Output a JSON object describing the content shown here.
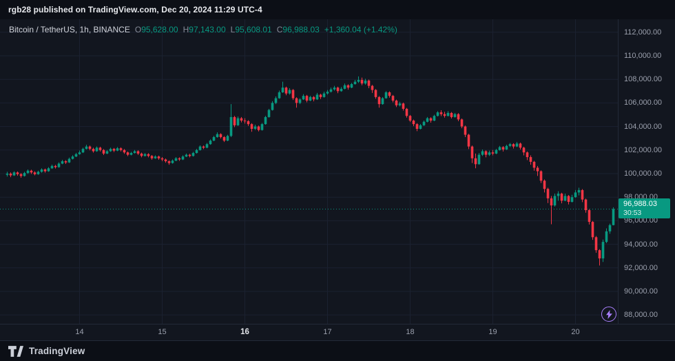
{
  "header": {
    "published_line": "rgb28 published on TradingView.com, Dec 20, 2024 11:29 UTC-4"
  },
  "legend": {
    "symbol": "Bitcoin / TetherUS, 1h, BINANCE",
    "o_label": "O",
    "o_value": "95,628.00",
    "h_label": "H",
    "h_value": "97,143.00",
    "l_label": "L",
    "l_value": "95,608.01",
    "c_label": "C",
    "c_value": "96,988.03",
    "change": "+1,360.04 (+1.42%)"
  },
  "price_scale": {
    "labels": [
      "112,000.00",
      "110,000.00",
      "108,000.00",
      "106,000.00",
      "104,000.00",
      "102,000.00",
      "100,000.00",
      "98,000.00",
      "96,000.00",
      "94,000.00",
      "92,000.00",
      "90,000.00",
      "88,000.00"
    ]
  },
  "price_badge": {
    "price": "96,988.03",
    "countdown": "30:53"
  },
  "time_axis": {
    "labels": [
      {
        "text": "14",
        "candle_index": 21,
        "emphasis": false
      },
      {
        "text": "15",
        "candle_index": 45,
        "emphasis": false
      },
      {
        "text": "16",
        "candle_index": 69,
        "emphasis": true
      },
      {
        "text": "17",
        "candle_index": 93,
        "emphasis": false
      },
      {
        "text": "18",
        "candle_index": 117,
        "emphasis": false
      },
      {
        "text": "19",
        "candle_index": 141,
        "emphasis": false
      },
      {
        "text": "20",
        "candle_index": 165,
        "emphasis": false
      }
    ]
  },
  "footer": {
    "brand": "TradingView"
  },
  "colors": {
    "up": "#089981",
    "down": "#f23645",
    "accent_green": "#089981",
    "badge_bg": "#089981",
    "bolt_purple": "#a87ffb"
  },
  "chart_data": {
    "type": "candlestick",
    "symbol": "Bitcoin / TetherUS",
    "interval": "1h",
    "exchange": "BINANCE",
    "title": "BTC/USDT 1h candlestick chart, Dec 13-20 2024",
    "ohlc_current": {
      "open": 95628.0,
      "high": 97143.0,
      "low": 95608.01,
      "close": 96988.03,
      "change": 1360.04,
      "change_pct": 1.42
    },
    "price_line": 96988.03,
    "countdown": "30:53",
    "y_ticks": [
      112000,
      110000,
      108000,
      106000,
      104000,
      102000,
      100000,
      98000,
      96000,
      94000,
      92000,
      90000,
      88000
    ],
    "y_domain": [
      87250,
      113100
    ],
    "x_unit": "hours, day tick labels = Dec 2024",
    "grid": true,
    "candles": [
      [
        99900,
        100150,
        99750,
        100000
      ],
      [
        100000,
        100100,
        99700,
        99850
      ],
      [
        99850,
        100200,
        99800,
        100100
      ],
      [
        100100,
        100180,
        99820,
        99950
      ],
      [
        99950,
        100050,
        99650,
        99800
      ],
      [
        99800,
        100150,
        99750,
        100050
      ],
      [
        100050,
        100350,
        99980,
        100250
      ],
      [
        100250,
        100330,
        99980,
        100100
      ],
      [
        100100,
        100200,
        99850,
        99950
      ],
      [
        99950,
        100250,
        99900,
        100150
      ],
      [
        100150,
        100450,
        100080,
        100350
      ],
      [
        100350,
        100430,
        100080,
        100200
      ],
      [
        100200,
        100550,
        100150,
        100450
      ],
      [
        100450,
        100760,
        100400,
        100650
      ],
      [
        100650,
        100740,
        100430,
        100550
      ],
      [
        100550,
        100960,
        100500,
        100850
      ],
      [
        100850,
        101160,
        100800,
        101050
      ],
      [
        101050,
        101140,
        100820,
        100950
      ],
      [
        100950,
        101360,
        100900,
        101250
      ],
      [
        101250,
        101560,
        101200,
        101450
      ],
      [
        101450,
        101760,
        101400,
        101650
      ],
      [
        101650,
        101960,
        101600,
        101800
      ],
      [
        101800,
        102200,
        101750,
        102100
      ],
      [
        102100,
        102450,
        102050,
        102300
      ],
      [
        102300,
        102380,
        101980,
        102100
      ],
      [
        102100,
        102200,
        101780,
        101900
      ],
      [
        101900,
        102300,
        101850,
        102200
      ],
      [
        102200,
        102280,
        101880,
        102000
      ],
      [
        102000,
        102080,
        101580,
        101700
      ],
      [
        101700,
        102000,
        101650,
        101900
      ],
      [
        101900,
        102200,
        101850,
        102100
      ],
      [
        102100,
        102180,
        101830,
        101950
      ],
      [
        101950,
        102250,
        101900,
        102150
      ],
      [
        102150,
        102230,
        101880,
        102000
      ],
      [
        102000,
        102080,
        101680,
        101800
      ],
      [
        101800,
        101880,
        101480,
        101600
      ],
      [
        101600,
        101850,
        101550,
        101750
      ],
      [
        101750,
        102000,
        101700,
        101900
      ],
      [
        101900,
        101980,
        101580,
        101700
      ],
      [
        101700,
        101780,
        101380,
        101500
      ],
      [
        101500,
        101750,
        101450,
        101650
      ],
      [
        101650,
        101730,
        101380,
        101500
      ],
      [
        101500,
        101580,
        101180,
        101300
      ],
      [
        101300,
        101550,
        101250,
        101450
      ],
      [
        101450,
        101530,
        101180,
        101300
      ],
      [
        101300,
        101400,
        101050,
        101200
      ],
      [
        101200,
        101280,
        100930,
        101050
      ],
      [
        101050,
        101130,
        100750,
        100900
      ],
      [
        100900,
        101200,
        100850,
        101100
      ],
      [
        101100,
        101400,
        101050,
        101300
      ],
      [
        101300,
        101380,
        101080,
        101200
      ],
      [
        101200,
        101550,
        101150,
        101450
      ],
      [
        101450,
        101700,
        101400,
        101600
      ],
      [
        101600,
        101680,
        101380,
        101500
      ],
      [
        101500,
        101850,
        101450,
        101750
      ],
      [
        101750,
        102100,
        101700,
        102000
      ],
      [
        102000,
        102400,
        101950,
        102300
      ],
      [
        102300,
        102380,
        102080,
        102200
      ],
      [
        102200,
        102600,
        102150,
        102500
      ],
      [
        102500,
        102900,
        102450,
        102800
      ],
      [
        102800,
        103200,
        102750,
        103100
      ],
      [
        103100,
        103500,
        103050,
        103350
      ],
      [
        103350,
        103430,
        102980,
        103100
      ],
      [
        103100,
        103180,
        102680,
        102800
      ],
      [
        102800,
        103300,
        102750,
        103200
      ],
      [
        103200,
        105900,
        103100,
        104800
      ],
      [
        104800,
        104900,
        103950,
        104100
      ],
      [
        104100,
        104850,
        104050,
        104700
      ],
      [
        104700,
        104800,
        104350,
        104500
      ],
      [
        104500,
        104700,
        104250,
        104450
      ],
      [
        104450,
        104530,
        104050,
        104200
      ],
      [
        104200,
        104280,
        103550,
        103800
      ],
      [
        103800,
        104150,
        103700,
        104000
      ],
      [
        104000,
        104080,
        103580,
        103700
      ],
      [
        103700,
        104300,
        103650,
        104200
      ],
      [
        104200,
        104900,
        104150,
        104800
      ],
      [
        104800,
        105500,
        104750,
        105400
      ],
      [
        105400,
        106150,
        105350,
        106000
      ],
      [
        106000,
        106550,
        105900,
        106400
      ],
      [
        106400,
        107050,
        106350,
        106900
      ],
      [
        106900,
        107800,
        106850,
        107300
      ],
      [
        107300,
        107380,
        106650,
        106800
      ],
      [
        106800,
        107250,
        106700,
        107100
      ],
      [
        107100,
        107180,
        106250,
        106400
      ],
      [
        106400,
        106480,
        105600,
        106000
      ],
      [
        106000,
        106400,
        105900,
        106300
      ],
      [
        106300,
        106750,
        106250,
        106600
      ],
      [
        106600,
        106680,
        106050,
        106200
      ],
      [
        106200,
        106600,
        106150,
        106500
      ],
      [
        106500,
        106580,
        106130,
        106300
      ],
      [
        106300,
        106850,
        106250,
        106700
      ],
      [
        106700,
        106780,
        106330,
        106500
      ],
      [
        106500,
        106950,
        106450,
        106800
      ],
      [
        106800,
        107100,
        106700,
        106950
      ],
      [
        106950,
        107300,
        106880,
        107150
      ],
      [
        107150,
        107450,
        107050,
        107300
      ],
      [
        107300,
        107380,
        106830,
        107000
      ],
      [
        107000,
        107350,
        106950,
        107200
      ],
      [
        107200,
        107650,
        107150,
        107500
      ],
      [
        107500,
        107580,
        107130,
        107300
      ],
      [
        107300,
        107700,
        107250,
        107600
      ],
      [
        107600,
        107950,
        107550,
        107800
      ],
      [
        107800,
        108250,
        107700,
        107950
      ],
      [
        107950,
        108150,
        107500,
        107650
      ],
      [
        107650,
        108050,
        107550,
        107900
      ],
      [
        107900,
        107980,
        107250,
        107450
      ],
      [
        107450,
        107530,
        106850,
        107100
      ],
      [
        107100,
        107180,
        106350,
        106500
      ],
      [
        106500,
        106580,
        105600,
        105900
      ],
      [
        105900,
        106500,
        105850,
        106400
      ],
      [
        106400,
        107000,
        106350,
        106900
      ],
      [
        106900,
        106980,
        106450,
        106600
      ],
      [
        106600,
        106680,
        106050,
        106200
      ],
      [
        106200,
        106280,
        105650,
        105800
      ],
      [
        105800,
        106100,
        105700,
        105950
      ],
      [
        105950,
        106030,
        105350,
        105500
      ],
      [
        105500,
        105580,
        104750,
        104900
      ],
      [
        104900,
        104980,
        104380,
        104500
      ],
      [
        104500,
        104580,
        104030,
        104200
      ],
      [
        104200,
        104280,
        103600,
        103800
      ],
      [
        103800,
        104200,
        103750,
        104100
      ],
      [
        104100,
        104500,
        104050,
        104400
      ],
      [
        104400,
        104800,
        104350,
        104700
      ],
      [
        104700,
        104780,
        104330,
        104500
      ],
      [
        104500,
        105000,
        104450,
        104900
      ],
      [
        104900,
        105300,
        104850,
        105200
      ],
      [
        105200,
        105380,
        104880,
        105050
      ],
      [
        105050,
        105250,
        104750,
        104900
      ],
      [
        104900,
        105300,
        104850,
        105150
      ],
      [
        105150,
        105230,
        104680,
        104800
      ],
      [
        104800,
        105150,
        104750,
        105050
      ],
      [
        105050,
        105130,
        104450,
        104600
      ],
      [
        104600,
        104680,
        103850,
        104000
      ],
      [
        104000,
        104080,
        103100,
        103300
      ],
      [
        103300,
        103380,
        102080,
        102300
      ],
      [
        102300,
        102380,
        100900,
        101300
      ],
      [
        101300,
        101700,
        100450,
        100800
      ],
      [
        100800,
        101750,
        100750,
        101600
      ],
      [
        101600,
        102050,
        101500,
        101900
      ],
      [
        101900,
        101980,
        101380,
        101600
      ],
      [
        101600,
        101950,
        101500,
        101800
      ],
      [
        101800,
        102000,
        101550,
        101700
      ],
      [
        101700,
        102100,
        101650,
        102000
      ],
      [
        102000,
        102350,
        101950,
        102250
      ],
      [
        102250,
        102330,
        101880,
        102050
      ],
      [
        102050,
        102450,
        102000,
        102350
      ],
      [
        102350,
        102600,
        102250,
        102500
      ],
      [
        102500,
        102580,
        102130,
        102300
      ],
      [
        102300,
        102680,
        102250,
        102550
      ],
      [
        102550,
        102630,
        102050,
        102200
      ],
      [
        102200,
        102280,
        101550,
        101800
      ],
      [
        101800,
        101880,
        101150,
        101400
      ],
      [
        101400,
        101550,
        100750,
        101000
      ],
      [
        101000,
        101080,
        100250,
        100500
      ],
      [
        100500,
        100650,
        99800,
        100200
      ],
      [
        100200,
        100280,
        99200,
        99400
      ],
      [
        99400,
        99500,
        98400,
        98700
      ],
      [
        98700,
        98800,
        97500,
        97900
      ],
      [
        97900,
        98100,
        95700,
        97300
      ],
      [
        97300,
        98300,
        97200,
        98100
      ],
      [
        98100,
        98500,
        97700,
        98300
      ],
      [
        98300,
        98380,
        97480,
        97700
      ],
      [
        97700,
        98300,
        97650,
        98100
      ],
      [
        98100,
        98180,
        97380,
        97600
      ],
      [
        97600,
        98200,
        97550,
        98000
      ],
      [
        98000,
        98600,
        97950,
        98400
      ],
      [
        98400,
        98800,
        98150,
        98600
      ],
      [
        98600,
        98680,
        97580,
        97800
      ],
      [
        97800,
        97880,
        96680,
        96900
      ],
      [
        96900,
        96980,
        95680,
        95900
      ],
      [
        95900,
        95980,
        94380,
        94600
      ],
      [
        94600,
        94700,
        93280,
        93500
      ],
      [
        93500,
        93580,
        92200,
        92800
      ],
      [
        92800,
        94400,
        92500,
        94200
      ],
      [
        94200,
        95350,
        94100,
        95100
      ],
      [
        95100,
        95750,
        94900,
        95628
      ],
      [
        95628,
        97143,
        95608,
        96988.03
      ]
    ]
  }
}
